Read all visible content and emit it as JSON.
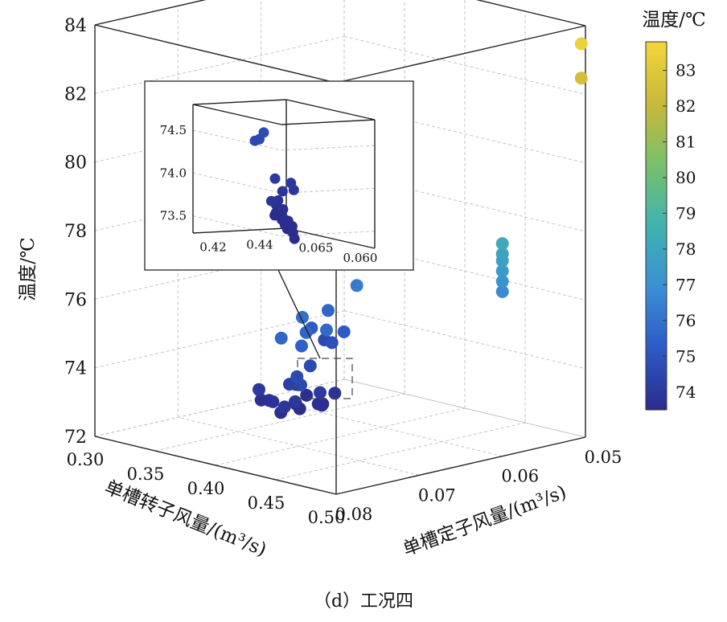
{
  "chart_data": {
    "type": "scatter",
    "caption": "（d）工况四",
    "xlabel": "单槽定子风量/(m³/s)",
    "ylabel": "单槽转子风量/(m³/s)",
    "zlabel": "温度/℃",
    "colorbar_label": "温度/℃",
    "x_ticks": [
      "0.05",
      "0.06",
      "0.07",
      "0.08"
    ],
    "y_ticks": [
      "0.30",
      "0.35",
      "0.40",
      "0.45",
      "0.50"
    ],
    "z_ticks": [
      "72",
      "74",
      "76",
      "78",
      "80",
      "82",
      "84"
    ],
    "xlim": [
      0.05,
      0.08
    ],
    "ylim": [
      0.3,
      0.5
    ],
    "zlim": [
      72,
      84
    ],
    "colorbar_ticks": [
      "74",
      "75",
      "76",
      "77",
      "78",
      "79",
      "80",
      "81",
      "82",
      "83"
    ],
    "colorbar_range": [
      73.5,
      83.8
    ],
    "colormap": [
      "#2b2c8c",
      "#2d5ac5",
      "#3b8fd4",
      "#3fb3b0",
      "#78c06a",
      "#c9b83a",
      "#f2d63a"
    ],
    "points": [
      {
        "x": 0.0505,
        "y": 0.5,
        "z": 83.5
      },
      {
        "x": 0.0505,
        "y": 0.5,
        "z": 82.5
      },
      {
        "x": 0.06,
        "y": 0.5,
        "z": 78.2
      },
      {
        "x": 0.06,
        "y": 0.5,
        "z": 77.9
      },
      {
        "x": 0.06,
        "y": 0.5,
        "z": 77.7
      },
      {
        "x": 0.06,
        "y": 0.5,
        "z": 77.4
      },
      {
        "x": 0.06,
        "y": 0.5,
        "z": 77.1
      },
      {
        "x": 0.06,
        "y": 0.5,
        "z": 76.8
      },
      {
        "x": 0.063,
        "y": 0.4,
        "z": 76.3
      },
      {
        "x": 0.066,
        "y": 0.41,
        "z": 75.2
      },
      {
        "x": 0.065,
        "y": 0.39,
        "z": 75.6
      },
      {
        "x": 0.067,
        "y": 0.39,
        "z": 75.2
      },
      {
        "x": 0.066,
        "y": 0.4,
        "z": 74.8
      },
      {
        "x": 0.064,
        "y": 0.38,
        "z": 74.6
      },
      {
        "x": 0.071,
        "y": 0.41,
        "z": 75.9
      },
      {
        "x": 0.072,
        "y": 0.42,
        "z": 75.6
      },
      {
        "x": 0.071,
        "y": 0.43,
        "z": 75.7
      },
      {
        "x": 0.075,
        "y": 0.42,
        "z": 75.6
      },
      {
        "x": 0.074,
        "y": 0.43,
        "z": 75.4
      },
      {
        "x": 0.076,
        "y": 0.44,
        "z": 74.7
      },
      {
        "x": 0.077,
        "y": 0.45,
        "z": 74.6
      },
      {
        "x": 0.0715,
        "y": 0.42,
        "z": 74.6
      },
      {
        "x": 0.074,
        "y": 0.42,
        "z": 74.2
      },
      {
        "x": 0.071,
        "y": 0.405,
        "z": 73.9
      },
      {
        "x": 0.0755,
        "y": 0.435,
        "z": 73.9
      },
      {
        "x": 0.072,
        "y": 0.43,
        "z": 73.6
      },
      {
        "x": 0.07,
        "y": 0.42,
        "z": 73.4
      },
      {
        "x": 0.0735,
        "y": 0.425,
        "z": 73.5
      },
      {
        "x": 0.075,
        "y": 0.41,
        "z": 73.7
      },
      {
        "x": 0.0745,
        "y": 0.4,
        "z": 73.6
      },
      {
        "x": 0.076,
        "y": 0.42,
        "z": 73.8
      },
      {
        "x": 0.073,
        "y": 0.44,
        "z": 73.7
      },
      {
        "x": 0.0725,
        "y": 0.415,
        "z": 73.5
      },
      {
        "x": 0.0765,
        "y": 0.43,
        "z": 73.6
      },
      {
        "x": 0.07,
        "y": 0.43,
        "z": 73.8
      },
      {
        "x": 0.0775,
        "y": 0.44,
        "z": 73.9
      },
      {
        "x": 0.0725,
        "y": 0.435,
        "z": 74.0
      },
      {
        "x": 0.0755,
        "y": 0.405,
        "z": 74.0
      },
      {
        "x": 0.0705,
        "y": 0.41,
        "z": 73.6
      }
    ],
    "inset": {
      "x_ticks": [
        "0.060",
        "0.065"
      ],
      "y_ticks": [
        "0.44",
        "0.42"
      ],
      "z_ticks": [
        "73.5",
        "74.0",
        "74.5"
      ],
      "xlim": [
        0.058,
        0.068
      ],
      "ylim": [
        0.41,
        0.45
      ],
      "zlim": [
        73.3,
        74.8
      ],
      "points": [
        {
          "x": 0.06,
          "y": 0.41,
          "z": 74.66
        },
        {
          "x": 0.0605,
          "y": 0.41,
          "z": 74.57
        },
        {
          "x": 0.061,
          "y": 0.41,
          "z": 74.54
        },
        {
          "x": 0.0602,
          "y": 0.414,
          "z": 73.85
        },
        {
          "x": 0.064,
          "y": 0.43,
          "z": 74.0
        },
        {
          "x": 0.063,
          "y": 0.433,
          "z": 73.97
        },
        {
          "x": 0.0632,
          "y": 0.435,
          "z": 73.88
        },
        {
          "x": 0.065,
          "y": 0.437,
          "z": 73.82
        },
        {
          "x": 0.0655,
          "y": 0.437,
          "z": 73.7
        },
        {
          "x": 0.0665,
          "y": 0.44,
          "z": 73.62
        },
        {
          "x": 0.066,
          "y": 0.441,
          "z": 73.58
        },
        {
          "x": 0.0668,
          "y": 0.441,
          "z": 73.52
        },
        {
          "x": 0.0672,
          "y": 0.442,
          "z": 73.48
        },
        {
          "x": 0.0664,
          "y": 0.442,
          "z": 73.45
        },
        {
          "x": 0.0658,
          "y": 0.44,
          "z": 73.5
        },
        {
          "x": 0.065,
          "y": 0.438,
          "z": 73.43
        },
        {
          "x": 0.0642,
          "y": 0.436,
          "z": 73.4
        },
        {
          "x": 0.0638,
          "y": 0.434,
          "z": 73.46
        },
        {
          "x": 0.0625,
          "y": 0.432,
          "z": 73.4
        },
        {
          "x": 0.0618,
          "y": 0.43,
          "z": 73.35
        },
        {
          "x": 0.062,
          "y": 0.428,
          "z": 73.46
        },
        {
          "x": 0.063,
          "y": 0.43,
          "z": 73.55
        },
        {
          "x": 0.061,
          "y": 0.426,
          "z": 73.52
        },
        {
          "x": 0.0612,
          "y": 0.425,
          "z": 73.58
        }
      ]
    },
    "grid": true,
    "legend": "colorbar-right"
  }
}
